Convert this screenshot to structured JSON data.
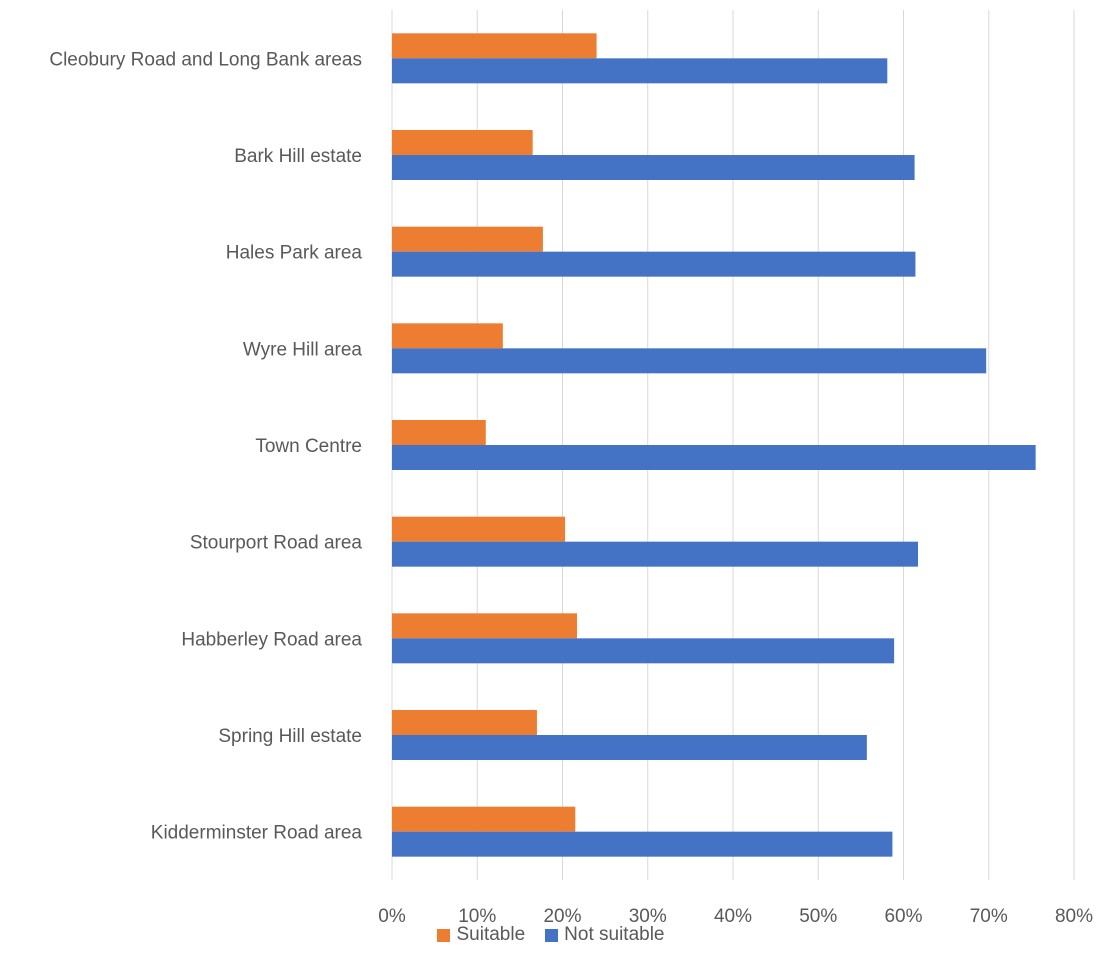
{
  "chart_data": {
    "type": "bar",
    "orientation": "horizontal",
    "title": "",
    "xlabel": "",
    "ylabel": "",
    "categories": [
      "Cleobury Road and Long Bank areas",
      "Bark Hill estate",
      "Hales Park area",
      "Wyre Hill area",
      "Town Centre",
      "Stourport Road area",
      "Habberley Road area",
      "Spring Hill estate",
      "Kidderminster Road area"
    ],
    "series": [
      {
        "name": "Suitable",
        "color": "#ED7D31",
        "values": [
          24,
          16.5,
          17.7,
          13,
          11,
          20.3,
          21.7,
          17,
          21.5
        ]
      },
      {
        "name": "Not suitable",
        "color": "#4472C4",
        "values": [
          58.1,
          61.3,
          61.4,
          69.7,
          75.5,
          61.7,
          58.9,
          55.7,
          58.7
        ]
      }
    ],
    "xlim": [
      0,
      80
    ],
    "x_ticks": [
      "0%",
      "10%",
      "20%",
      "30%",
      "40%",
      "50%",
      "60%",
      "70%",
      "80%"
    ],
    "grid": true,
    "legend_position": "bottom"
  }
}
